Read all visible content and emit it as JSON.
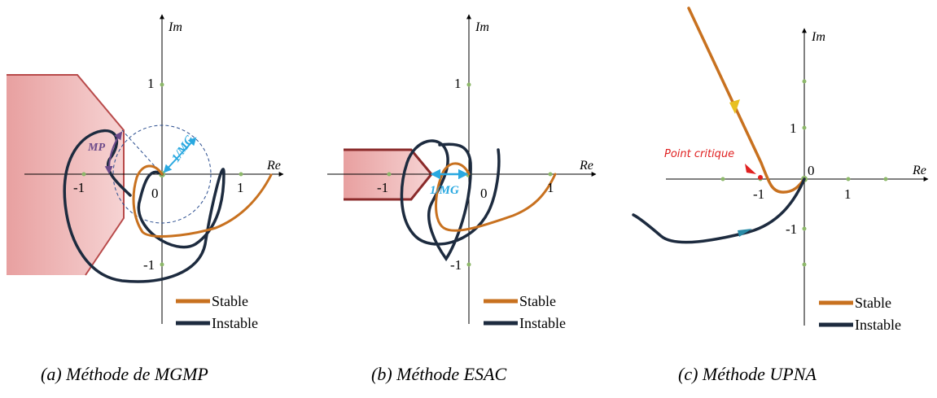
{
  "panels": [
    {
      "caption": "(a) Méthode de MGMP",
      "axis_re": "Re",
      "axis_im": "Im",
      "tick_neg1": "-1",
      "tick_pos1": "1",
      "tick_im1": "1",
      "tick_imneg1": "-1",
      "origin": "0",
      "margin_phase": "MP",
      "margin_gain": "1/MG",
      "legend": {
        "stable": "Stable",
        "instable": "Instable"
      }
    },
    {
      "caption": "(b) Méthode ESAC",
      "axis_re": "Re",
      "axis_im": "Im",
      "tick_neg1": "-1",
      "tick_pos1": "1",
      "tick_im1": "1",
      "tick_imneg1": "-1",
      "origin": "0",
      "margin_gain": "1/MG",
      "legend": {
        "stable": "Stable",
        "instable": "Instable"
      }
    },
    {
      "caption": "(c) Méthode UPNA",
      "axis_re": "Re",
      "axis_im": "Im",
      "tick_neg1": "-1",
      "tick_pos1": "1",
      "tick_im1": "1",
      "tick_imneg1": "-1",
      "origin": "0",
      "critical_point": "Point critique",
      "legend": {
        "stable": "Stable",
        "instable": "Instable"
      }
    }
  ],
  "colors": {
    "stable": "#c8711f",
    "instable": "#1d2b3f",
    "zone_fill": "#e8a3a3",
    "zone_stroke": "#b84a4a",
    "margin_blue": "#29a8e0",
    "mp_purple": "#6b4a8a",
    "critical_red": "#e02020",
    "tick_green": "#8db86a"
  }
}
